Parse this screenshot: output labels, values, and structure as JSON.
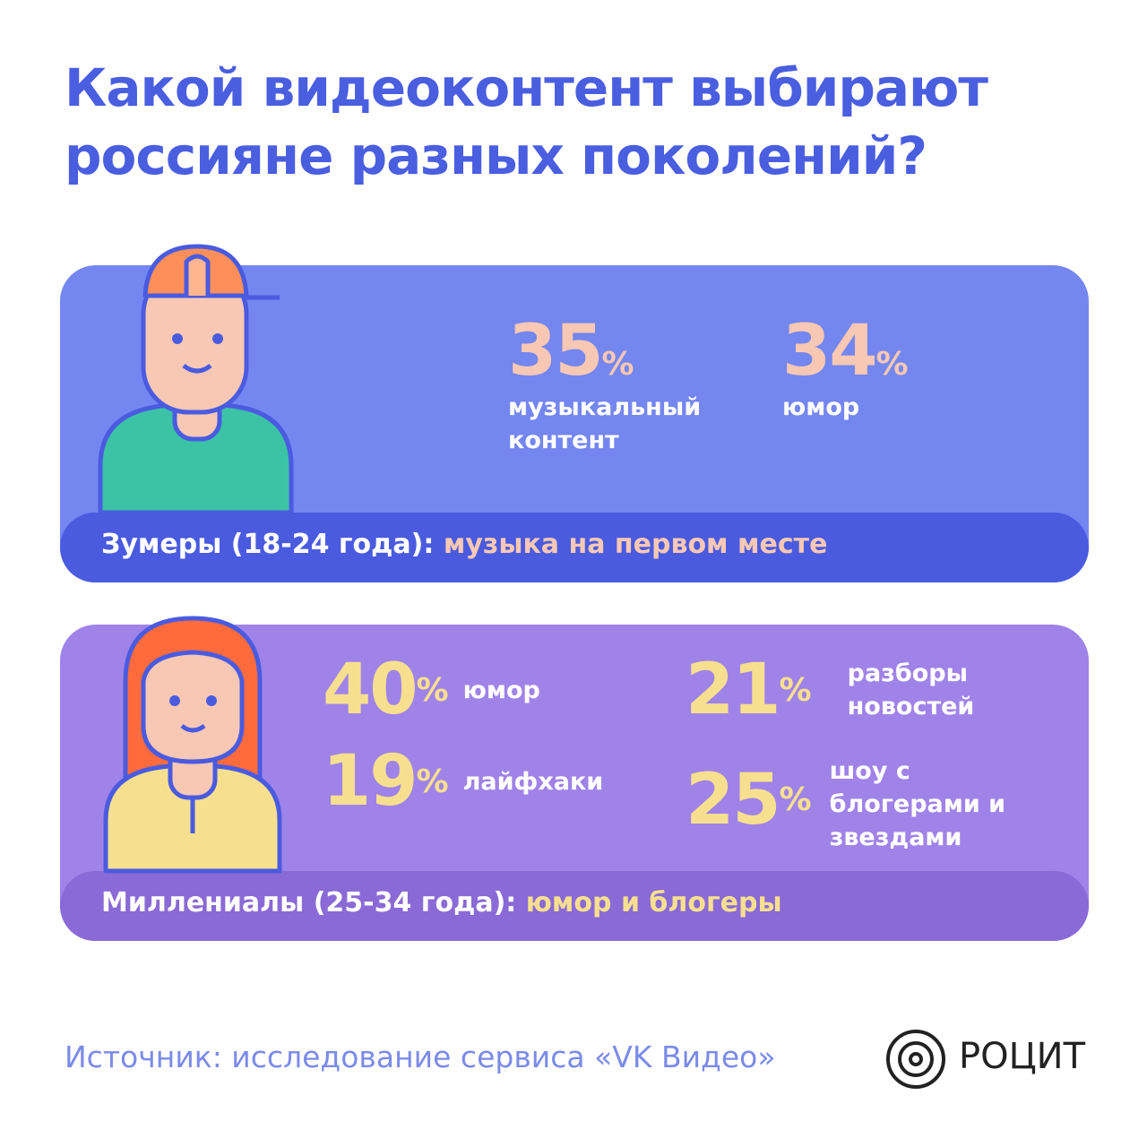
{
  "title": "Какой видеоконтент выбирают россияне разных поколений?",
  "sections": [
    {
      "stats": [
        {
          "value": 35,
          "unit": "%",
          "label": "музыкальный контент"
        },
        {
          "value": 34,
          "unit": "%",
          "label": "юмор"
        }
      ],
      "caption": "Зумеры (18-24 года):",
      "highlight": "музыка на первом месте"
    },
    {
      "stats": [
        {
          "value": 40,
          "unit": "%",
          "label": "юмор"
        },
        {
          "value": 19,
          "unit": "%",
          "label": "лайфхаки"
        },
        {
          "value": 21,
          "unit": "%",
          "label": "разборы новостей"
        },
        {
          "value": 25,
          "unit": "%",
          "label": "шоу с блогерами и звездами"
        }
      ],
      "caption": "Миллениалы (25-34 года):",
      "highlight": "юмор и блогеры"
    }
  ],
  "source": "Источник: исследование сервиса «VK Видео»",
  "logo": "РОЦИТ"
}
